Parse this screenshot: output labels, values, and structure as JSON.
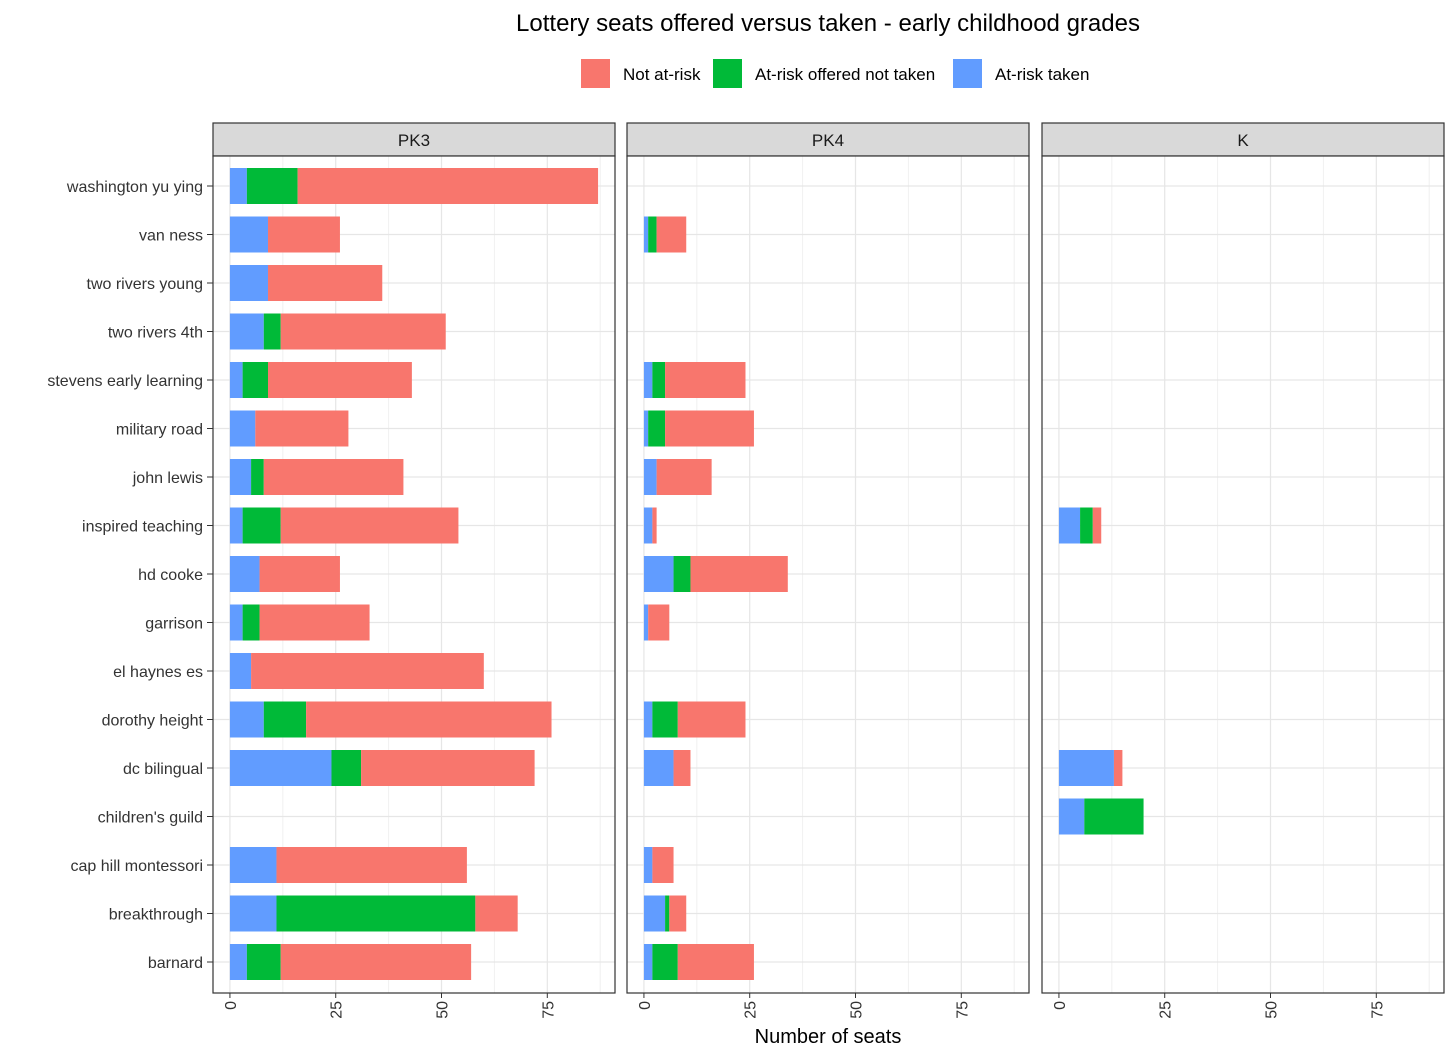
{
  "chart_data": {
    "type": "bar",
    "orientation": "horizontal",
    "stacked": true,
    "title": "Lottery seats offered versus taken - early childhood grades",
    "xlabel": "Number of seats",
    "ylabel": "",
    "xlim": [
      -4,
      91
    ],
    "x_ticks": [
      0,
      25,
      50,
      75
    ],
    "grid": true,
    "legend_position": "top",
    "legend": [
      {
        "key": "not_at_risk",
        "label": "Not at-risk",
        "color": "#F8766D"
      },
      {
        "key": "offered",
        "label": "At-risk offered not taken",
        "color": "#00BA38"
      },
      {
        "key": "taken",
        "label": "At-risk taken",
        "color": "#619CFF"
      }
    ],
    "stack_order": [
      "taken",
      "offered",
      "not_at_risk"
    ],
    "categories": [
      "washington yu ying",
      "van ness",
      "two rivers young",
      "two rivers 4th",
      "stevens early learning",
      "military road",
      "john lewis",
      "inspired teaching",
      "hd cooke",
      "garrison",
      "el haynes es",
      "dorothy height",
      "dc bilingual",
      "children's guild",
      "cap hill montessori",
      "breakthrough",
      "barnard"
    ],
    "panels": [
      {
        "name": "PK3",
        "rows": {
          "washington yu ying": {
            "taken": 4,
            "offered": 12,
            "not_at_risk": 71
          },
          "van ness": {
            "taken": 9,
            "offered": 0,
            "not_at_risk": 17
          },
          "two rivers young": {
            "taken": 9,
            "offered": 0,
            "not_at_risk": 27
          },
          "two rivers 4th": {
            "taken": 8,
            "offered": 4,
            "not_at_risk": 39
          },
          "stevens early learning": {
            "taken": 3,
            "offered": 6,
            "not_at_risk": 34
          },
          "military road": {
            "taken": 6,
            "offered": 0,
            "not_at_risk": 22
          },
          "john lewis": {
            "taken": 5,
            "offered": 3,
            "not_at_risk": 33
          },
          "inspired teaching": {
            "taken": 3,
            "offered": 9,
            "not_at_risk": 42
          },
          "hd cooke": {
            "taken": 7,
            "offered": 0,
            "not_at_risk": 19
          },
          "garrison": {
            "taken": 3,
            "offered": 4,
            "not_at_risk": 26
          },
          "el haynes es": {
            "taken": 5,
            "offered": 0,
            "not_at_risk": 55
          },
          "dorothy height": {
            "taken": 8,
            "offered": 10,
            "not_at_risk": 58
          },
          "dc bilingual": {
            "taken": 24,
            "offered": 7,
            "not_at_risk": 41
          },
          "cap hill montessori": {
            "taken": 11,
            "offered": 0,
            "not_at_risk": 45
          },
          "breakthrough": {
            "taken": 11,
            "offered": 47,
            "not_at_risk": 10
          },
          "barnard": {
            "taken": 4,
            "offered": 8,
            "not_at_risk": 45
          }
        }
      },
      {
        "name": "PK4",
        "rows": {
          "van ness": {
            "taken": 1,
            "offered": 2,
            "not_at_risk": 7
          },
          "stevens early learning": {
            "taken": 2,
            "offered": 3,
            "not_at_risk": 19
          },
          "military road": {
            "taken": 1,
            "offered": 4,
            "not_at_risk": 21
          },
          "john lewis": {
            "taken": 3,
            "offered": 0,
            "not_at_risk": 13
          },
          "inspired teaching": {
            "taken": 2,
            "offered": 0,
            "not_at_risk": 1
          },
          "hd cooke": {
            "taken": 7,
            "offered": 4,
            "not_at_risk": 23
          },
          "garrison": {
            "taken": 1,
            "offered": 0,
            "not_at_risk": 5
          },
          "dorothy height": {
            "taken": 2,
            "offered": 6,
            "not_at_risk": 16
          },
          "dc bilingual": {
            "taken": 7,
            "offered": 0,
            "not_at_risk": 4
          },
          "cap hill montessori": {
            "taken": 2,
            "offered": 0,
            "not_at_risk": 5
          },
          "breakthrough": {
            "taken": 5,
            "offered": 1,
            "not_at_risk": 4
          },
          "barnard": {
            "taken": 2,
            "offered": 6,
            "not_at_risk": 18
          }
        }
      },
      {
        "name": "K",
        "rows": {
          "inspired teaching": {
            "taken": 5,
            "offered": 3,
            "not_at_risk": 2
          },
          "dc bilingual": {
            "taken": 13,
            "offered": 0,
            "not_at_risk": 2
          },
          "children's guild": {
            "taken": 6,
            "offered": 14,
            "not_at_risk": 0
          }
        }
      }
    ]
  }
}
